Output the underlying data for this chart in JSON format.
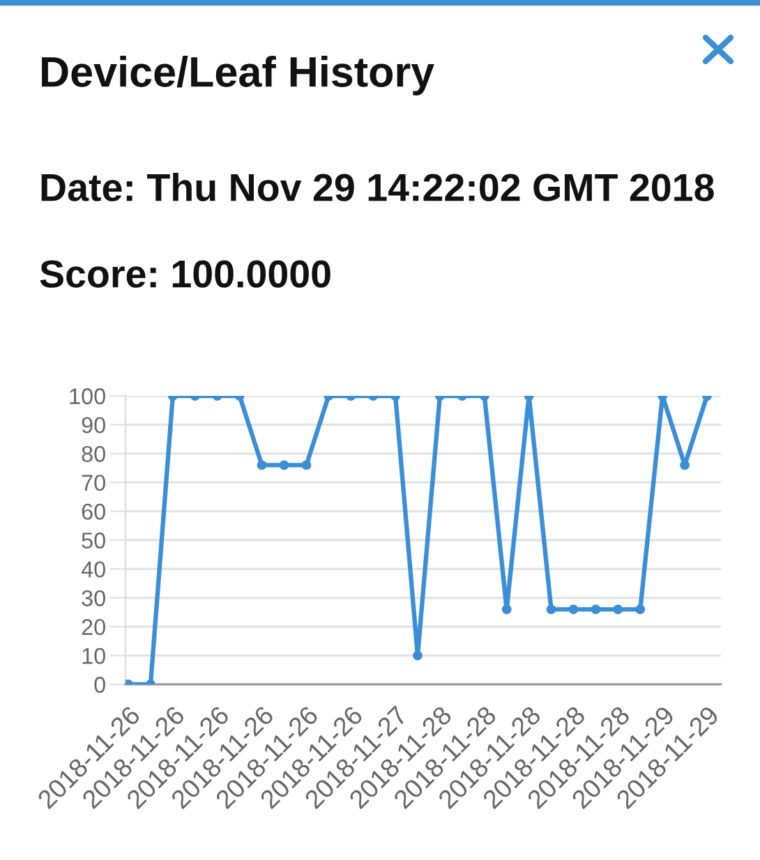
{
  "chart_data": {
    "type": "line",
    "title": "Device/Leaf History",
    "subtitle": "Date: Thu Nov 29 14:22:02 GMT 2018",
    "annotations": [
      "Score: 100.0000"
    ],
    "categories": [
      "2018-11-26",
      null,
      "2018-11-26",
      null,
      "2018-11-26",
      null,
      "2018-11-26",
      null,
      "2018-11-26",
      null,
      "2018-11-26",
      null,
      "2018-11-27",
      null,
      "2018-11-28",
      null,
      "2018-11-28",
      null,
      "2018-11-28",
      null,
      "2018-11-28",
      null,
      "2018-11-28",
      null,
      "2018-11-29",
      null,
      "2018-11-29"
    ],
    "series": [
      {
        "color": "#3a8fd6",
        "values": [
          0,
          0,
          100,
          100,
          100,
          100,
          76,
          76,
          76,
          100,
          100,
          100,
          100,
          10,
          100,
          100,
          100,
          26,
          100,
          26,
          26,
          26,
          26,
          26,
          100,
          76,
          100
        ]
      }
    ],
    "ylim": [
      0,
      100
    ],
    "yticks": [
      0,
      10,
      20,
      30,
      40,
      50,
      60,
      70,
      80,
      90,
      100
    ],
    "grid": "y",
    "marker": "circle",
    "line_style": "solid"
  }
}
